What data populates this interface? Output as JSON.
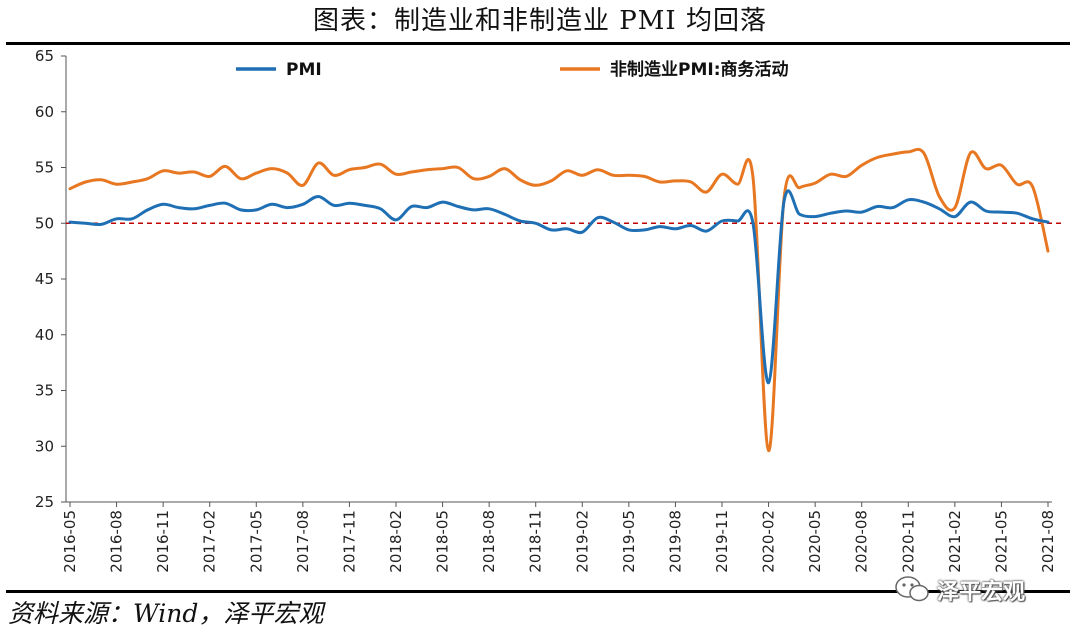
{
  "title": "图表：制造业和非制造业 PMI 均回落",
  "source": "资料来源：Wind，泽平宏观",
  "watermark": "泽平宏观",
  "chart_data": {
    "type": "line",
    "ylim": [
      25,
      65
    ],
    "yticks": [
      25,
      30,
      35,
      40,
      45,
      50,
      55,
      60,
      65
    ],
    "reference_line": {
      "value": 50,
      "color": "#c00000",
      "style": "dashed"
    },
    "legend_position": "top",
    "x": [
      "2016-05",
      "2016-06",
      "2016-07",
      "2016-08",
      "2016-09",
      "2016-10",
      "2016-11",
      "2016-12",
      "2017-01",
      "2017-02",
      "2017-03",
      "2017-04",
      "2017-05",
      "2017-06",
      "2017-07",
      "2017-08",
      "2017-09",
      "2017-10",
      "2017-11",
      "2017-12",
      "2018-01",
      "2018-02",
      "2018-03",
      "2018-04",
      "2018-05",
      "2018-06",
      "2018-07",
      "2018-08",
      "2018-09",
      "2018-10",
      "2018-11",
      "2018-12",
      "2019-01",
      "2019-02",
      "2019-03",
      "2019-04",
      "2019-05",
      "2019-06",
      "2019-07",
      "2019-08",
      "2019-09",
      "2019-10",
      "2019-11",
      "2019-12",
      "2020-01",
      "2020-02",
      "2020-03",
      "2020-04",
      "2020-05",
      "2020-06",
      "2020-07",
      "2020-08",
      "2020-09",
      "2020-10",
      "2020-11",
      "2020-12",
      "2021-01",
      "2021-02",
      "2021-03",
      "2021-04",
      "2021-05",
      "2021-06",
      "2021-07",
      "2021-08"
    ],
    "xticks": [
      "2016-05",
      "2016-08",
      "2016-11",
      "2017-02",
      "2017-05",
      "2017-08",
      "2017-11",
      "2018-02",
      "2018-05",
      "2018-08",
      "2018-11",
      "2019-02",
      "2019-05",
      "2019-08",
      "2019-11",
      "2020-02",
      "2020-05",
      "2020-08",
      "2020-11",
      "2021-02",
      "2021-05",
      "2021-08"
    ],
    "series": [
      {
        "name": "PMI",
        "color": "#1f6fb4",
        "values": [
          50.1,
          50.0,
          49.9,
          50.4,
          50.4,
          51.2,
          51.7,
          51.4,
          51.3,
          51.6,
          51.8,
          51.2,
          51.2,
          51.7,
          51.4,
          51.7,
          52.4,
          51.6,
          51.8,
          51.6,
          51.3,
          50.3,
          51.5,
          51.4,
          51.9,
          51.5,
          51.2,
          51.3,
          50.8,
          50.2,
          50.0,
          49.4,
          49.5,
          49.2,
          50.5,
          50.1,
          49.4,
          49.4,
          49.7,
          49.5,
          49.8,
          49.3,
          50.2,
          50.2,
          50.0,
          35.7,
          52.0,
          50.8,
          50.6,
          50.9,
          51.1,
          51.0,
          51.5,
          51.4,
          52.1,
          51.9,
          51.3,
          50.6,
          51.9,
          51.1,
          51.0,
          50.9,
          50.4,
          50.1
        ]
      },
      {
        "name": "非制造业PMI:商务活动",
        "color": "#e87722",
        "values": [
          53.1,
          53.7,
          53.9,
          53.5,
          53.7,
          54.0,
          54.7,
          54.5,
          54.6,
          54.2,
          55.1,
          54.0,
          54.5,
          54.9,
          54.5,
          53.4,
          55.4,
          54.3,
          54.8,
          55.0,
          55.3,
          54.4,
          54.6,
          54.8,
          54.9,
          55.0,
          54.0,
          54.2,
          54.9,
          53.9,
          53.4,
          53.8,
          54.7,
          54.3,
          54.8,
          54.3,
          54.3,
          54.2,
          53.7,
          53.8,
          53.7,
          52.8,
          54.4,
          53.5,
          54.1,
          29.6,
          52.3,
          53.2,
          53.6,
          54.4,
          54.2,
          55.2,
          55.9,
          56.2,
          56.4,
          56.3,
          52.4,
          51.4,
          56.3,
          54.9,
          55.2,
          53.5,
          53.3,
          47.5
        ]
      }
    ]
  }
}
